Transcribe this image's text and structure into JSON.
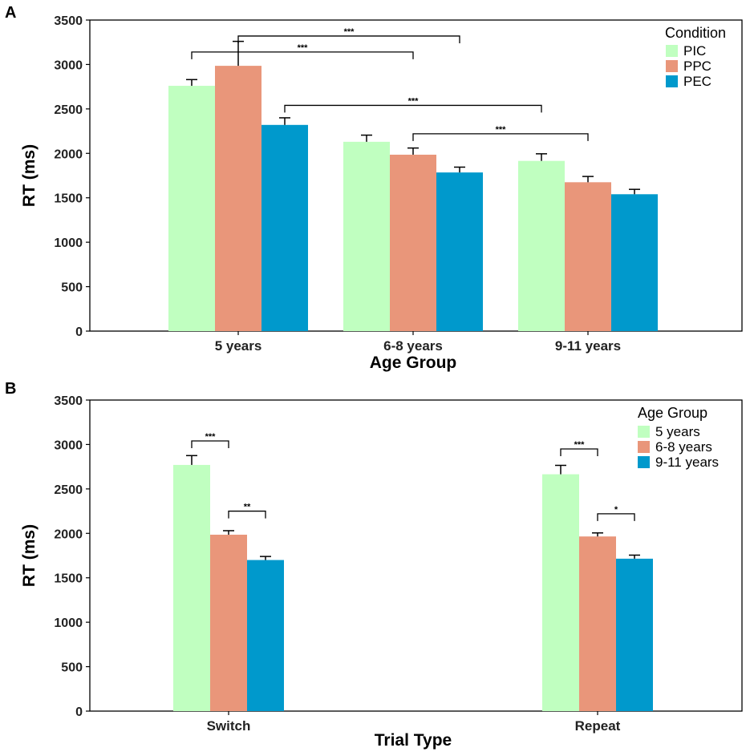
{
  "colors": {
    "series1": "#c0ffc0",
    "series2": "#e9967a",
    "series3": "#0099cc",
    "axis": "#000000"
  },
  "chart_data": [
    {
      "type": "bar",
      "panel_label": "A",
      "xlabel": "Age Group",
      "ylabel": "RT (ms)",
      "ylim": [
        0,
        3500
      ],
      "yticks": [
        0,
        500,
        1000,
        1500,
        2000,
        2500,
        3000,
        3500
      ],
      "categories": [
        "5 years",
        "6-8 years",
        "9-11 years"
      ],
      "legend_title": "Condition",
      "legend_position": "top-right",
      "series": [
        {
          "name": "PIC",
          "values": [
            2760,
            2130,
            1915
          ],
          "errors": [
            70,
            75,
            80
          ]
        },
        {
          "name": "PPC",
          "values": [
            2985,
            1985,
            1675
          ],
          "errors": [
            275,
            75,
            65
          ]
        },
        {
          "name": "PEC",
          "values": [
            2320,
            1785,
            1540
          ],
          "errors": [
            80,
            60,
            55
          ]
        }
      ],
      "significance": [
        {
          "from": [
            0,
            1
          ],
          "to": [
            1,
            2
          ],
          "label": "***",
          "level": 3320
        },
        {
          "from": [
            0,
            0
          ],
          "to": [
            1,
            1
          ],
          "label": "***",
          "level": 3140
        },
        {
          "from": [
            0,
            2
          ],
          "to": [
            2,
            0
          ],
          "label": "***",
          "level": 2540
        },
        {
          "from": [
            1,
            1
          ],
          "to": [
            2,
            1
          ],
          "label": "***",
          "level": 2220
        }
      ]
    },
    {
      "type": "bar",
      "panel_label": "B",
      "xlabel": "Trial Type",
      "ylabel": "RT (ms)",
      "ylim": [
        0,
        3500
      ],
      "yticks": [
        0,
        500,
        1000,
        1500,
        2000,
        2500,
        3000,
        3500
      ],
      "categories": [
        "Switch",
        "Repeat"
      ],
      "legend_title": "Age Group",
      "legend_position": "top-right",
      "series": [
        {
          "name": "5 years",
          "values": [
            2770,
            2665
          ],
          "errors": [
            105,
            100
          ]
        },
        {
          "name": "6-8 years",
          "values": [
            1985,
            1965
          ],
          "errors": [
            45,
            40
          ]
        },
        {
          "name": "9-11 years",
          "values": [
            1700,
            1715
          ],
          "errors": [
            40,
            40
          ]
        }
      ],
      "significance": [
        {
          "from": [
            0,
            0
          ],
          "to": [
            0,
            1
          ],
          "label": "***",
          "level": 3040
        },
        {
          "from": [
            0,
            1
          ],
          "to": [
            0,
            2
          ],
          "label": "**",
          "level": 2250
        },
        {
          "from": [
            1,
            0
          ],
          "to": [
            1,
            1
          ],
          "label": "***",
          "level": 2950
        },
        {
          "from": [
            1,
            1
          ],
          "to": [
            1,
            2
          ],
          "label": "*",
          "level": 2220
        }
      ]
    }
  ]
}
